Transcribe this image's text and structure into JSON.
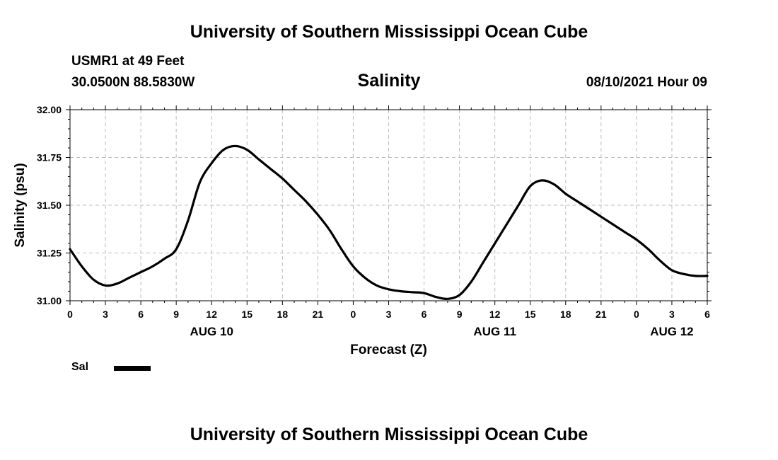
{
  "header": {
    "title": "University of Southern Mississippi Ocean Cube",
    "footer_title": "University of Southern Mississippi Ocean Cube",
    "station": "USMR1 at 49 Feet",
    "coordinates": "30.0500N  88.5830W",
    "subtitle": "Salinity",
    "datetime": "08/10/2021 Hour 09"
  },
  "legend": {
    "label": "Sal",
    "color": "#000000"
  },
  "chart_data": {
    "type": "line",
    "title": "Salinity",
    "xlabel": "Forecast (Z)",
    "ylabel": "Salinity (psu)",
    "xlim": [
      0,
      54
    ],
    "ylim": [
      31.0,
      32.0
    ],
    "grid": true,
    "x_ticks": [
      0,
      3,
      6,
      9,
      12,
      15,
      18,
      21,
      24,
      27,
      30,
      33,
      36,
      39,
      42,
      45,
      48,
      51,
      54
    ],
    "x_tick_labels": [
      "0",
      "3",
      "6",
      "9",
      "12",
      "15",
      "18",
      "21",
      "0",
      "3",
      "6",
      "9",
      "12",
      "15",
      "18",
      "21",
      "0",
      "3",
      "6"
    ],
    "y_ticks": [
      31.0,
      31.25,
      31.5,
      31.75,
      32.0
    ],
    "y_tick_labels": [
      "31.00",
      "31.25",
      "31.50",
      "31.75",
      "32.00"
    ],
    "day_labels": [
      {
        "x": 12,
        "label": "AUG 10"
      },
      {
        "x": 36,
        "label": "AUG 11"
      },
      {
        "x": 51,
        "label": "AUG 12"
      }
    ],
    "series": [
      {
        "name": "Sal",
        "color": "#000000",
        "x": [
          0,
          1,
          2,
          3,
          4,
          5,
          6,
          7,
          8,
          9,
          10,
          11,
          12,
          13,
          14,
          15,
          16,
          17,
          18,
          19,
          20,
          21,
          22,
          23,
          24,
          25,
          26,
          27,
          28,
          29,
          30,
          31,
          32,
          33,
          34,
          35,
          36,
          37,
          38,
          39,
          40,
          41,
          42,
          43,
          44,
          45,
          46,
          47,
          48,
          49,
          50,
          51,
          52,
          53,
          54
        ],
        "values": [
          31.27,
          31.18,
          31.11,
          31.08,
          31.09,
          31.12,
          31.15,
          31.18,
          31.22,
          31.27,
          31.42,
          31.62,
          31.72,
          31.79,
          31.81,
          31.79,
          31.74,
          31.69,
          31.64,
          31.58,
          31.52,
          31.45,
          31.37,
          31.27,
          31.18,
          31.12,
          31.08,
          31.06,
          31.05,
          31.045,
          31.04,
          31.02,
          31.01,
          31.03,
          31.1,
          31.2,
          31.3,
          31.4,
          31.5,
          31.6,
          31.63,
          31.61,
          31.56,
          31.52,
          31.48,
          31.44,
          31.4,
          31.36,
          31.32,
          31.27,
          31.21,
          31.16,
          31.14,
          31.13,
          31.13
        ]
      }
    ]
  }
}
